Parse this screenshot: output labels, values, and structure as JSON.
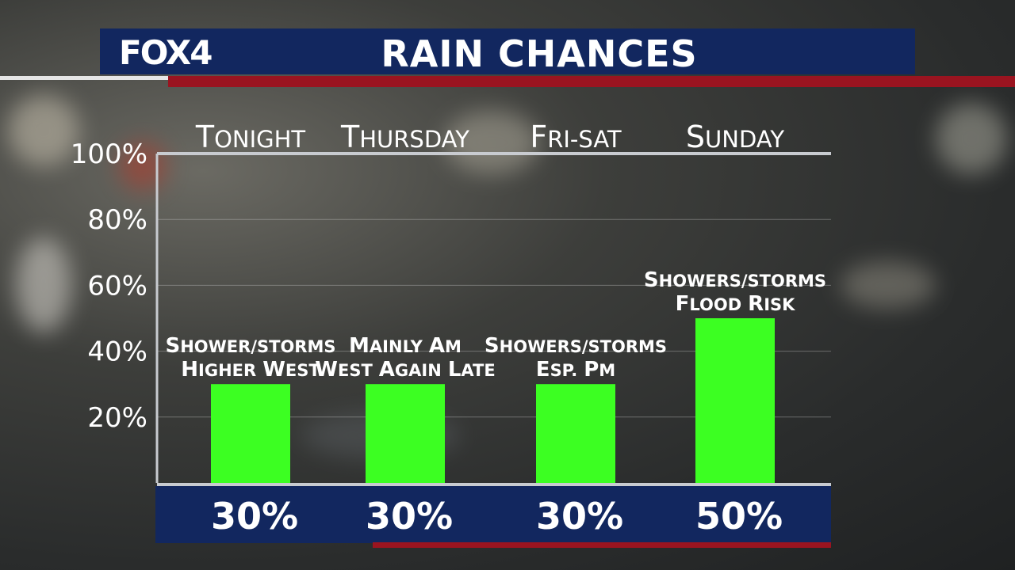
{
  "header": {
    "logo": "FOX4",
    "title": "RAIN CHANCES"
  },
  "colors": {
    "bar": "#3cff22",
    "header_bg": "#12275f",
    "accent_red": "#9a1420",
    "axis": "#c8cbd0"
  },
  "chart_data": {
    "type": "bar",
    "title": "RAIN CHANCES",
    "categories": [
      "Tonight",
      "Thursday",
      "Fri-Sat",
      "Sunday"
    ],
    "values": [
      30,
      30,
      30,
      50
    ],
    "value_labels": [
      "30%",
      "30%",
      "30%",
      "50%"
    ],
    "annotations": [
      [
        "Shower/Storms",
        "Higher West"
      ],
      [
        "Mainly AM",
        "West Again Late"
      ],
      [
        "Showers/Storms",
        "Esp. PM"
      ],
      [
        "Showers/Storms",
        "Flood Risk"
      ]
    ],
    "y_ticks": [
      "100%",
      "80%",
      "60%",
      "40%",
      "20%"
    ],
    "y_tick_values": [
      100,
      80,
      60,
      40,
      20
    ],
    "ylim": [
      0,
      100
    ],
    "grid": true,
    "legend": "none"
  }
}
